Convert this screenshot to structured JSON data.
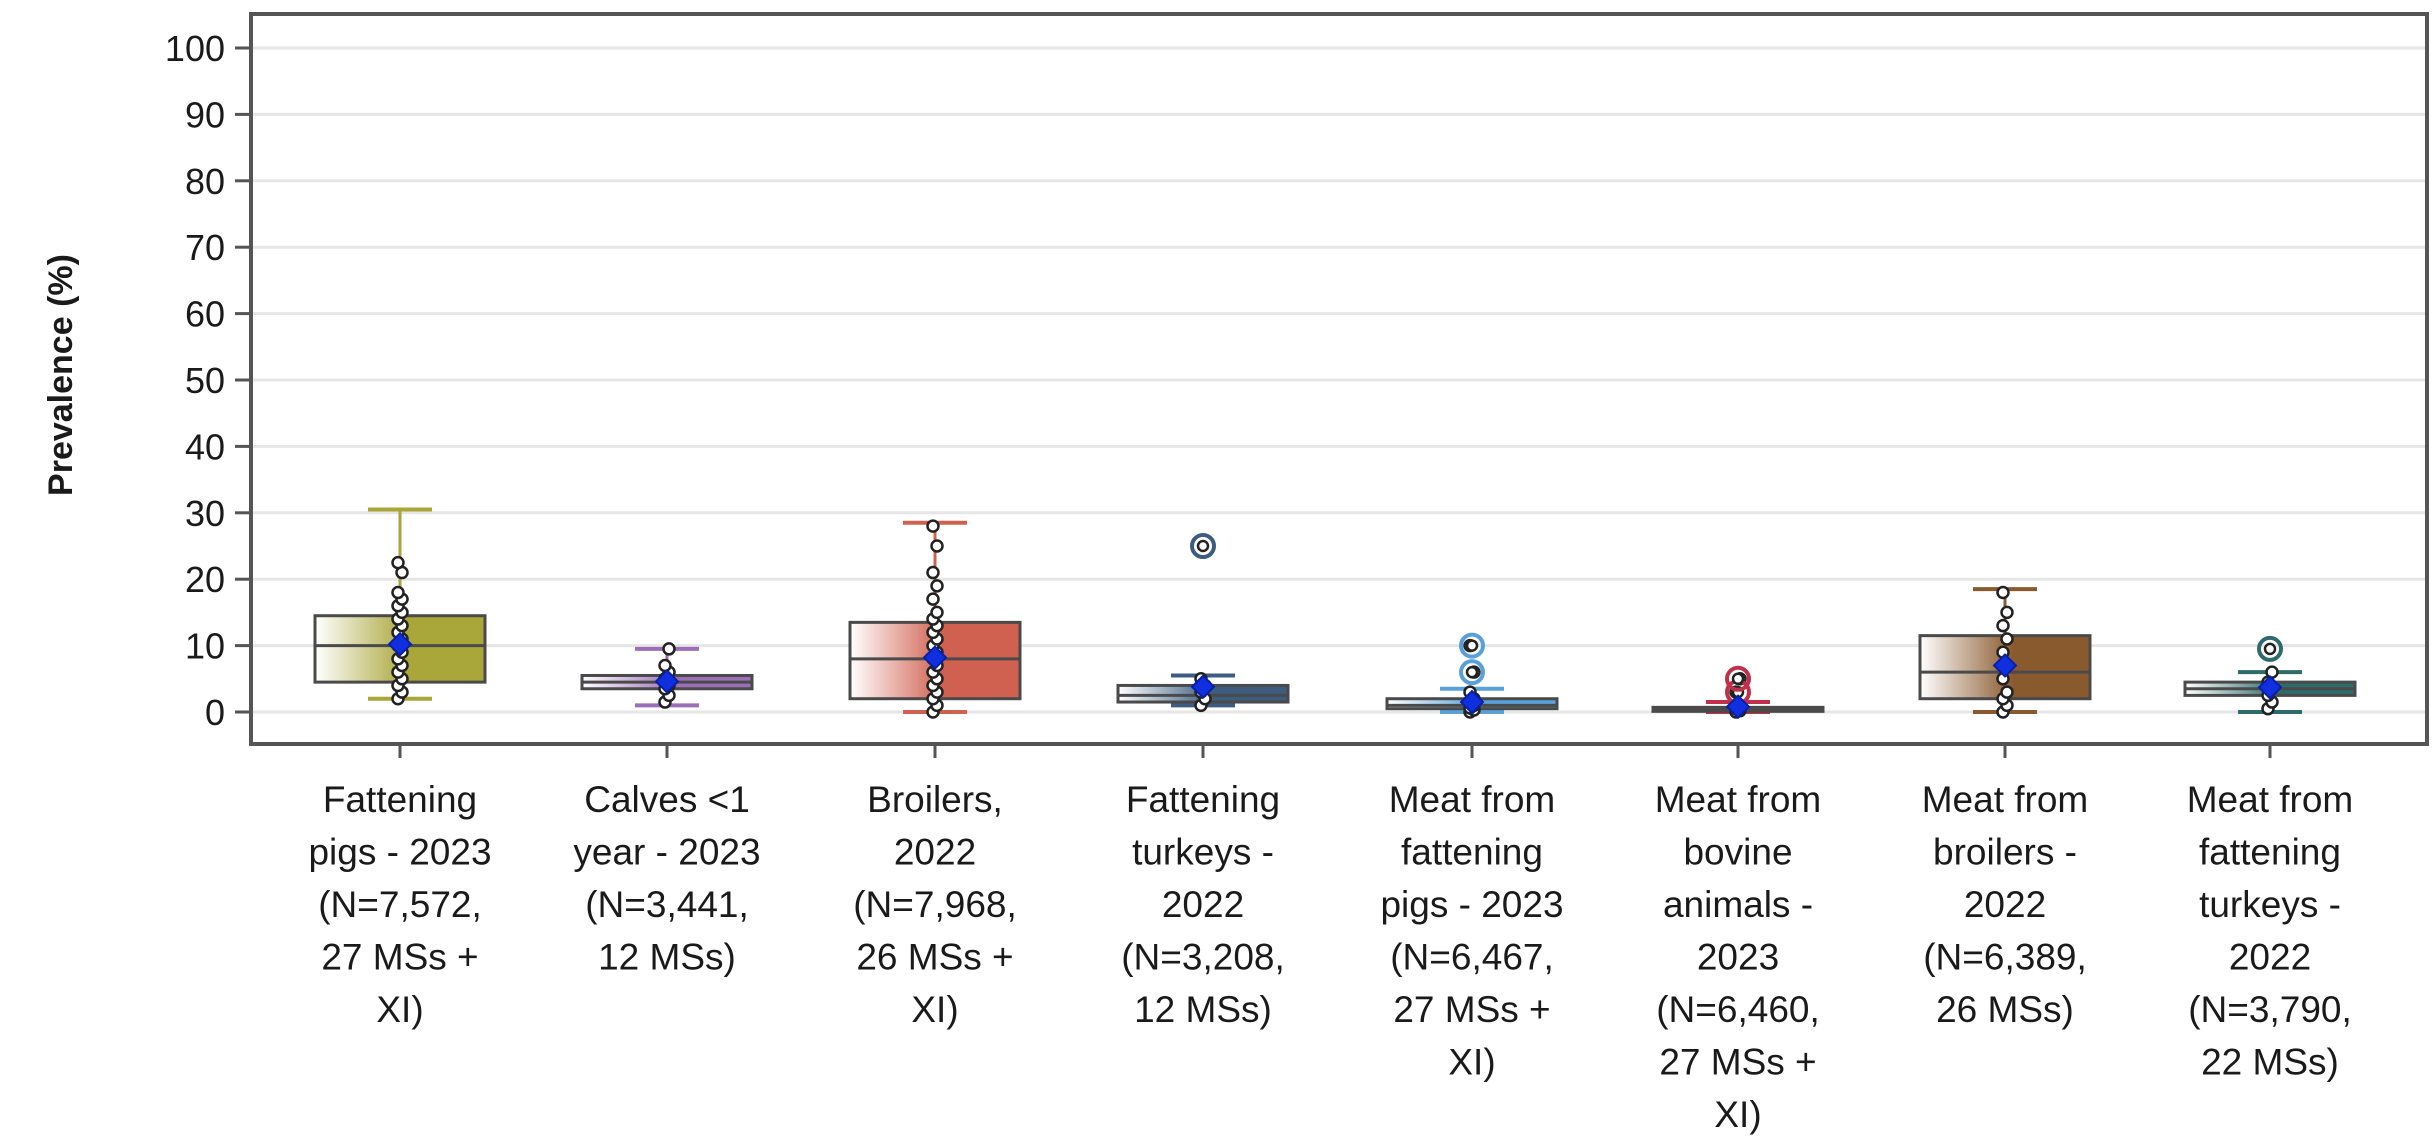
{
  "chart_data": {
    "type": "box",
    "ylabel": "Prevalence (%)",
    "xlabel": "",
    "ylim": [
      -5,
      105
    ],
    "yticks": [
      "0",
      "10",
      "20",
      "30",
      "40",
      "50",
      "60",
      "70",
      "80",
      "90",
      "100"
    ],
    "grid": true,
    "categories": [
      {
        "label_lines": [
          "Fattening",
          "pigs - 2023",
          "(N=7,572,",
          "27 MSs +",
          "XI)"
        ],
        "color": "#a9a63a",
        "light": "#eeeecf",
        "min": 2,
        "q1": 4.5,
        "median": 10,
        "q3": 14.5,
        "max": 30.5,
        "mean": 10.2,
        "outliers": [],
        "points": [
          2,
          3,
          4,
          5,
          6,
          7,
          8,
          9,
          10,
          11,
          12,
          13,
          14,
          15,
          16,
          17,
          18,
          21,
          22.5
        ]
      },
      {
        "label_lines": [
          "Calves <1",
          "year - 2023",
          "(N=3,441,",
          "12 MSs)"
        ],
        "color": "#9b6fb8",
        "light": "#ece2f3",
        "min": 1,
        "q1": 3.5,
        "median": 4.5,
        "q3": 5.5,
        "max": 9.5,
        "mean": 4.6,
        "outliers": [],
        "points": [
          1.5,
          2.5,
          3.5,
          4,
          5,
          6,
          7,
          9.5
        ]
      },
      {
        "label_lines": [
          "Broilers,",
          "2022",
          "(N=7,968,",
          "26 MSs +",
          "XI)"
        ],
        "color": "#d0604f",
        "light": "#f8dfdb",
        "min": 0,
        "q1": 2,
        "median": 8,
        "q3": 13.5,
        "max": 28.5,
        "mean": 8.2,
        "outliers": [],
        "points": [
          0,
          1,
          2,
          3,
          4,
          5,
          6,
          7,
          8,
          9,
          10,
          11,
          12,
          13,
          14,
          15,
          17,
          19,
          21,
          25,
          28
        ]
      },
      {
        "label_lines": [
          "Fattening",
          "turkeys -",
          "2022",
          "(N=3,208,",
          "12 MSs)"
        ],
        "color": "#3d5d80",
        "light": "#d6e0ea",
        "min": 1,
        "q1": 1.5,
        "median": 2.5,
        "q3": 4,
        "max": 5.5,
        "mean": 3.8,
        "outliers": [
          25
        ],
        "points": [
          1,
          2,
          3,
          4,
          5
        ]
      },
      {
        "label_lines": [
          "Meat from",
          "fattening",
          "pigs - 2023",
          "(N=6,467,",
          "27 MSs +",
          "XI)"
        ],
        "color": "#5aa0d8",
        "light": "#d8e8f5",
        "min": 0,
        "q1": 0.5,
        "median": 1,
        "q3": 2,
        "max": 3.5,
        "mean": 1.5,
        "outliers": [
          6,
          10
        ],
        "points": [
          0,
          0.3,
          0.6,
          1,
          1.5,
          2,
          3,
          6,
          10
        ]
      },
      {
        "label_lines": [
          "Meat from",
          "bovine",
          "animals -",
          "2023",
          "(N=6,460,",
          "27 MSs +",
          "XI)"
        ],
        "color": "#c0304a",
        "light": "#f3d3d9",
        "min": 0,
        "q1": 0.2,
        "median": 0.4,
        "q3": 0.7,
        "max": 1.5,
        "mean": 0.8,
        "outliers": [
          3,
          5
        ],
        "points": [
          0,
          0.2,
          0.5,
          1,
          3,
          5
        ]
      },
      {
        "label_lines": [
          "Meat from",
          "broilers -",
          "2022",
          "(N=6,389,",
          "26 MSs)"
        ],
        "color": "#8a5a2f",
        "light": "#eee0d0",
        "min": 0,
        "q1": 2,
        "median": 6,
        "q3": 11.5,
        "max": 18.5,
        "mean": 7,
        "outliers": [],
        "points": [
          0,
          1,
          2,
          3,
          5,
          7,
          9,
          11,
          13,
          15,
          18
        ]
      },
      {
        "label_lines": [
          "Meat from",
          "fattening",
          "turkeys -",
          "2022",
          "(N=3,790,",
          "22 MSs)"
        ],
        "color": "#2d6c6a",
        "light": "#d3e6e4",
        "min": 0,
        "q1": 2.5,
        "median": 3.5,
        "q3": 4.5,
        "max": 6,
        "mean": 3.7,
        "outliers": [
          9.5
        ],
        "points": [
          0.5,
          1.5,
          2.5,
          3.5,
          4.5,
          6
        ]
      }
    ]
  }
}
